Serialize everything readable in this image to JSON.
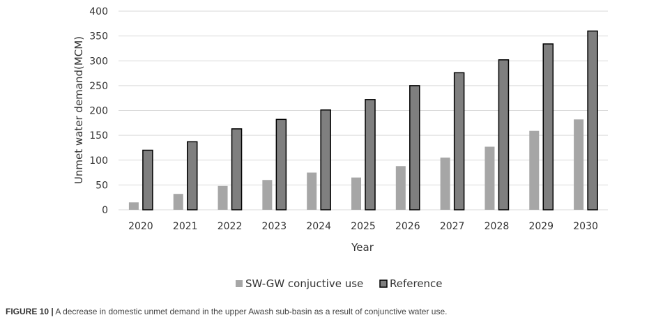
{
  "chart_data": {
    "type": "bar",
    "categories": [
      "2020",
      "2021",
      "2022",
      "2023",
      "2024",
      "2025",
      "2026",
      "2027",
      "2028",
      "2029",
      "2030"
    ],
    "series": [
      {
        "name": "SW-GW conjuctive use",
        "color": "#a6a6a6",
        "values": [
          15,
          32,
          48,
          60,
          75,
          65,
          88,
          105,
          127,
          159,
          182
        ]
      },
      {
        "name": "Reference",
        "color": "#7f7f7f",
        "values": [
          120,
          137,
          163,
          182,
          201,
          222,
          250,
          276,
          302,
          334,
          360
        ]
      }
    ],
    "title": "",
    "xlabel": "Year",
    "ylabel": "Unmet water demand(MCM)",
    "ylim": [
      0,
      400
    ],
    "yticks": [
      0,
      50,
      100,
      150,
      200,
      250,
      300,
      350,
      400
    ],
    "grid": true,
    "legend": "bottom"
  },
  "caption": {
    "figure_label": "FIGURE 10 |",
    "text": " A decrease in domestic unmet demand in the upper Awash sub-basin as a result of conjunctive water use."
  }
}
